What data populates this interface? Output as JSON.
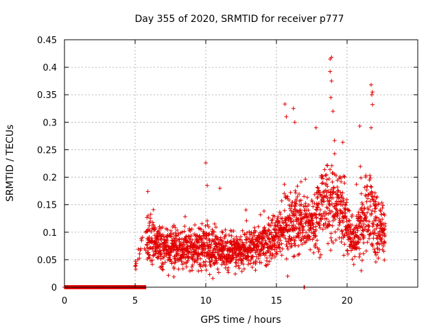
{
  "chart_data": {
    "type": "scatter",
    "title": "Day 355 of 2020, SRMTID for receiver p777",
    "xlabel": "GPS time / hours",
    "ylabel": "SRMTID / TECUs",
    "xlim": [
      0,
      25
    ],
    "ylim": [
      0,
      0.45
    ],
    "xticks": [
      0,
      5,
      10,
      15,
      20
    ],
    "yticks": [
      0,
      0.05,
      0.1,
      0.15,
      0.2,
      0.25,
      0.3,
      0.35,
      0.4,
      0.45
    ],
    "xtick_labels": [
      "0",
      "5",
      "10",
      "15",
      "20"
    ],
    "ytick_labels": [
      "0",
      "0.05",
      "0.1",
      "0.15",
      "0.2",
      "0.25",
      "0.3",
      "0.35",
      "0.4",
      "0.45"
    ],
    "grid": true,
    "marker": "+",
    "color": "#e00000",
    "zero_segments": [
      [
        0.0,
        5.8
      ],
      [
        16.95,
        17.0
      ]
    ],
    "envelope": [
      {
        "x": 5.0,
        "y": 0.04,
        "spread": 0.02
      },
      {
        "x": 5.8,
        "y": 0.09,
        "spread": 0.05
      },
      {
        "x": 7.0,
        "y": 0.07,
        "spread": 0.04
      },
      {
        "x": 8.5,
        "y": 0.07,
        "spread": 0.035
      },
      {
        "x": 10.0,
        "y": 0.075,
        "spread": 0.04
      },
      {
        "x": 11.5,
        "y": 0.06,
        "spread": 0.03
      },
      {
        "x": 13.0,
        "y": 0.07,
        "spread": 0.035
      },
      {
        "x": 14.5,
        "y": 0.08,
        "spread": 0.04
      },
      {
        "x": 15.5,
        "y": 0.11,
        "spread": 0.06
      },
      {
        "x": 16.5,
        "y": 0.12,
        "spread": 0.06
      },
      {
        "x": 17.5,
        "y": 0.11,
        "spread": 0.05
      },
      {
        "x": 18.5,
        "y": 0.16,
        "spread": 0.08
      },
      {
        "x": 19.5,
        "y": 0.14,
        "spread": 0.07
      },
      {
        "x": 20.5,
        "y": 0.08,
        "spread": 0.04
      },
      {
        "x": 21.5,
        "y": 0.14,
        "spread": 0.08
      },
      {
        "x": 22.7,
        "y": 0.09,
        "spread": 0.05
      }
    ],
    "outliers": [
      {
        "x": 5.9,
        "y": 0.174
      },
      {
        "x": 10.0,
        "y": 0.226
      },
      {
        "x": 10.1,
        "y": 0.185
      },
      {
        "x": 11.0,
        "y": 0.18
      },
      {
        "x": 15.6,
        "y": 0.333
      },
      {
        "x": 15.7,
        "y": 0.31
      },
      {
        "x": 16.2,
        "y": 0.325
      },
      {
        "x": 16.3,
        "y": 0.3
      },
      {
        "x": 17.8,
        "y": 0.29
      },
      {
        "x": 18.8,
        "y": 0.415
      },
      {
        "x": 18.9,
        "y": 0.418
      },
      {
        "x": 18.8,
        "y": 0.392
      },
      {
        "x": 18.9,
        "y": 0.375
      },
      {
        "x": 18.85,
        "y": 0.345
      },
      {
        "x": 19.0,
        "y": 0.32
      },
      {
        "x": 20.9,
        "y": 0.293
      },
      {
        "x": 21.7,
        "y": 0.368
      },
      {
        "x": 21.8,
        "y": 0.355
      },
      {
        "x": 21.75,
        "y": 0.35
      },
      {
        "x": 21.8,
        "y": 0.332
      },
      {
        "x": 21.7,
        "y": 0.29
      },
      {
        "x": 10.5,
        "y": 0.016
      },
      {
        "x": 15.8,
        "y": 0.02
      },
      {
        "x": 21.0,
        "y": 0.03
      }
    ]
  }
}
